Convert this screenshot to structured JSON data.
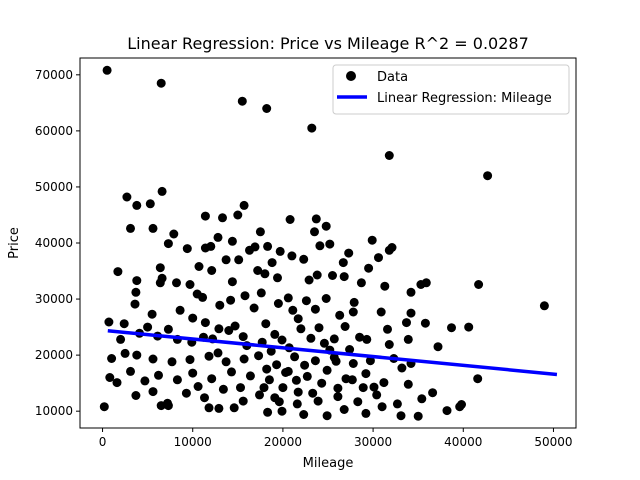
{
  "chart_data": {
    "type": "scatter",
    "title": "Linear Regression: Price vs Mileage  R^2 = 0.0287",
    "xlabel": "Mileage",
    "ylabel": "Price",
    "xlim": [
      -2500,
      52500
    ],
    "ylim": [
      7000,
      73000
    ],
    "xticks": [
      0,
      10000,
      20000,
      30000,
      40000,
      50000
    ],
    "yticks": [
      10000,
      20000,
      30000,
      40000,
      50000,
      60000,
      70000
    ],
    "grid": false,
    "legend_position": "top-right",
    "colors": {
      "data": "#000000",
      "regression": "#0000ff"
    },
    "regression": {
      "name": "Linear Regression: Mileage",
      "x": [
        583,
        50387
      ],
      "y": [
        24350,
        16550
      ]
    },
    "series": [
      {
        "name": "Data",
        "points": [
          [
            500,
            70800
          ],
          [
            6500,
            68500
          ],
          [
            15500,
            65300
          ],
          [
            18200,
            64000
          ],
          [
            23200,
            60500
          ],
          [
            31800,
            55600
          ],
          [
            42700,
            52000
          ],
          [
            49000,
            28800
          ],
          [
            6600,
            49200
          ],
          [
            2700,
            48200
          ],
          [
            3800,
            46700
          ],
          [
            5300,
            47000
          ],
          [
            15000,
            45000
          ],
          [
            15700,
            46700
          ],
          [
            11400,
            44800
          ],
          [
            13300,
            44500
          ],
          [
            20800,
            44200
          ],
          [
            23700,
            44300
          ],
          [
            24800,
            43000
          ],
          [
            5600,
            42600
          ],
          [
            3100,
            42600
          ],
          [
            7900,
            41600
          ],
          [
            12800,
            41000
          ],
          [
            14400,
            40300
          ],
          [
            17500,
            42000
          ],
          [
            23500,
            42000
          ],
          [
            25200,
            39800
          ],
          [
            29900,
            40500
          ],
          [
            7300,
            39900
          ],
          [
            9400,
            39000
          ],
          [
            11400,
            39100
          ],
          [
            12000,
            39400
          ],
          [
            16300,
            38700
          ],
          [
            16900,
            39300
          ],
          [
            18300,
            39400
          ],
          [
            19700,
            38500
          ],
          [
            21000,
            37700
          ],
          [
            24100,
            39500
          ],
          [
            27300,
            38200
          ],
          [
            31800,
            38700
          ],
          [
            32100,
            39200
          ],
          [
            30600,
            37400
          ],
          [
            13700,
            37000
          ],
          [
            15100,
            37000
          ],
          [
            18800,
            36500
          ],
          [
            22300,
            37100
          ],
          [
            26700,
            36500
          ],
          [
            29500,
            35500
          ],
          [
            1700,
            34900
          ],
          [
            6400,
            35600
          ],
          [
            10700,
            35800
          ],
          [
            12100,
            35100
          ],
          [
            17200,
            35100
          ],
          [
            18000,
            34500
          ],
          [
            23800,
            34300
          ],
          [
            25500,
            34200
          ],
          [
            35300,
            32600
          ],
          [
            35900,
            32900
          ],
          [
            41700,
            32600
          ],
          [
            3800,
            33300
          ],
          [
            6600,
            33700
          ],
          [
            6400,
            32900
          ],
          [
            8200,
            32900
          ],
          [
            9700,
            32600
          ],
          [
            14400,
            33100
          ],
          [
            19400,
            33800
          ],
          [
            22900,
            33400
          ],
          [
            26800,
            34000
          ],
          [
            28700,
            32900
          ],
          [
            31300,
            32300
          ],
          [
            3700,
            31200
          ],
          [
            10500,
            30900
          ],
          [
            11100,
            30300
          ],
          [
            14200,
            29800
          ],
          [
            15800,
            30600
          ],
          [
            17600,
            31100
          ],
          [
            20600,
            30200
          ],
          [
            22600,
            29700
          ],
          [
            24800,
            30100
          ],
          [
            27900,
            29400
          ],
          [
            34200,
            31200
          ],
          [
            3600,
            29100
          ],
          [
            5500,
            27300
          ],
          [
            8600,
            28000
          ],
          [
            13000,
            28900
          ],
          [
            16800,
            28400
          ],
          [
            19500,
            29200
          ],
          [
            23600,
            28200
          ],
          [
            27800,
            27700
          ],
          [
            30900,
            27700
          ],
          [
            34200,
            27500
          ],
          [
            38700,
            24900
          ],
          [
            40600,
            25000
          ],
          [
            700,
            25900
          ],
          [
            2400,
            25600
          ],
          [
            5000,
            25000
          ],
          [
            7300,
            24600
          ],
          [
            10000,
            26600
          ],
          [
            11400,
            25800
          ],
          [
            12900,
            24700
          ],
          [
            14700,
            25200
          ],
          [
            18100,
            25600
          ],
          [
            21700,
            26500
          ],
          [
            24000,
            24900
          ],
          [
            26900,
            25100
          ],
          [
            31600,
            24600
          ],
          [
            33700,
            25800
          ],
          [
            35800,
            25700
          ],
          [
            2000,
            22800
          ],
          [
            4100,
            23900
          ],
          [
            6100,
            23400
          ],
          [
            8300,
            22800
          ],
          [
            9900,
            22300
          ],
          [
            12200,
            22900
          ],
          [
            15600,
            23300
          ],
          [
            17700,
            22300
          ],
          [
            19900,
            22700
          ],
          [
            23100,
            23000
          ],
          [
            25700,
            22900
          ],
          [
            29300,
            22800
          ],
          [
            31800,
            21900
          ],
          [
            33900,
            22800
          ],
          [
            37200,
            21500
          ],
          [
            1000,
            19400
          ],
          [
            2500,
            20300
          ],
          [
            3800,
            20000
          ],
          [
            5600,
            19300
          ],
          [
            7700,
            18800
          ],
          [
            9700,
            19200
          ],
          [
            11800,
            19800
          ],
          [
            13700,
            18800
          ],
          [
            15700,
            19300
          ],
          [
            17300,
            19900
          ],
          [
            19300,
            18300
          ],
          [
            21300,
            19700
          ],
          [
            23600,
            19000
          ],
          [
            25700,
            19600
          ],
          [
            27800,
            18500
          ],
          [
            29700,
            19000
          ],
          [
            32300,
            19400
          ],
          [
            33200,
            17700
          ],
          [
            34200,
            18500
          ],
          [
            800,
            16000
          ],
          [
            1600,
            15100
          ],
          [
            3100,
            17100
          ],
          [
            4700,
            15400
          ],
          [
            6200,
            16400
          ],
          [
            8300,
            15600
          ],
          [
            10000,
            16800
          ],
          [
            12100,
            15800
          ],
          [
            14300,
            17000
          ],
          [
            16400,
            16300
          ],
          [
            18500,
            15600
          ],
          [
            20600,
            17100
          ],
          [
            22700,
            16200
          ],
          [
            24900,
            17300
          ],
          [
            27000,
            15800
          ],
          [
            29200,
            16700
          ],
          [
            31200,
            15100
          ],
          [
            33900,
            14800
          ],
          [
            36600,
            13300
          ],
          [
            3700,
            12800
          ],
          [
            5600,
            13500
          ],
          [
            7200,
            11400
          ],
          [
            9300,
            13200
          ],
          [
            11300,
            12400
          ],
          [
            13400,
            13900
          ],
          [
            15600,
            11800
          ],
          [
            17400,
            12900
          ],
          [
            19600,
            11700
          ],
          [
            21700,
            13400
          ],
          [
            23900,
            11800
          ],
          [
            26100,
            12600
          ],
          [
            28300,
            11700
          ],
          [
            30400,
            12900
          ],
          [
            32700,
            11300
          ],
          [
            35400,
            12200
          ],
          [
            39800,
            11200
          ],
          [
            41600,
            15800
          ],
          [
            200,
            10800
          ],
          [
            6500,
            11000
          ],
          [
            7300,
            11000
          ],
          [
            11800,
            10600
          ],
          [
            14600,
            10600
          ],
          [
            18300,
            9800
          ],
          [
            19900,
            10000
          ],
          [
            22300,
            9400
          ],
          [
            24900,
            9200
          ],
          [
            26800,
            10300
          ],
          [
            29200,
            9600
          ],
          [
            31000,
            10800
          ],
          [
            33100,
            9200
          ],
          [
            35000,
            9100
          ],
          [
            38200,
            10100
          ],
          [
            39600,
            10800
          ],
          [
            20000,
            14200
          ],
          [
            21500,
            15500
          ],
          [
            22400,
            18200
          ],
          [
            20700,
            21300
          ],
          [
            19100,
            23700
          ],
          [
            25200,
            20900
          ],
          [
            24300,
            15000
          ],
          [
            26100,
            14100
          ],
          [
            28900,
            14200
          ],
          [
            17900,
            14200
          ],
          [
            18700,
            20700
          ],
          [
            27400,
            21000
          ],
          [
            22000,
            24700
          ],
          [
            21100,
            28000
          ],
          [
            26300,
            27100
          ],
          [
            16000,
            21700
          ],
          [
            15300,
            14200
          ],
          [
            12800,
            20400
          ],
          [
            14000,
            24400
          ],
          [
            11200,
            23200
          ],
          [
            10600,
            14400
          ],
          [
            12900,
            10500
          ],
          [
            21600,
            11300
          ],
          [
            23300,
            13200
          ],
          [
            20300,
            16900
          ],
          [
            24600,
            22100
          ],
          [
            25900,
            18900
          ],
          [
            27700,
            15600
          ],
          [
            28500,
            23200
          ],
          [
            30100,
            14300
          ],
          [
            19100,
            12400
          ],
          [
            18200,
            17500
          ]
        ]
      }
    ]
  }
}
